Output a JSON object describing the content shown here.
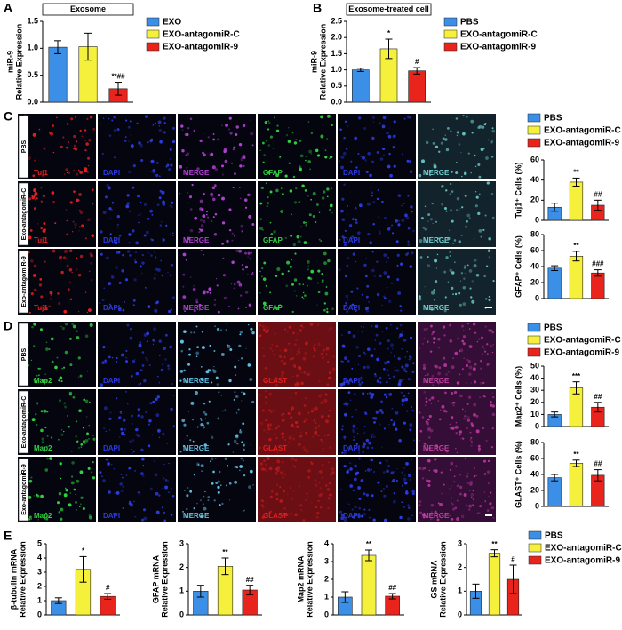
{
  "panels": [
    "A",
    "B",
    "C",
    "D",
    "E"
  ],
  "micrographs": [
    {
      "rows": [
        "PBS",
        "Exo-antagomiR-C",
        "Exo-antagomiR-9"
      ],
      "columns": [
        "Tuj1",
        "DAPI",
        "MERGE",
        "GFAP",
        "DAPI",
        "MERGE"
      ]
    },
    {
      "rows": [
        "PBS",
        "Exo-antagomiR-C",
        "Exo-antagomiR-9"
      ],
      "columns": [
        "Map2",
        "DAPI",
        "MERGE",
        "GLAST",
        "DAPI",
        "MERGE"
      ]
    }
  ],
  "chart_data": [
    {
      "type": "bar",
      "title": "Exosome",
      "ylabel": [
        "miR-9",
        "Relative Expression"
      ],
      "ylim": [
        0,
        1.5
      ],
      "yticks": [
        {
          "value": 0,
          "label": "0.0"
        },
        0.5,
        {
          "value": 1,
          "label": "1.0"
        },
        1.5
      ],
      "series": [
        {
          "name": "EXO",
          "color": "#3b8fe6",
          "values": [
            1.02
          ],
          "errors": [
            0.12
          ]
        },
        {
          "name": "EXO-antagomiR-C",
          "color": "#f5f03c",
          "values": [
            1.03
          ],
          "errors": [
            0.25
          ]
        },
        {
          "name": "EXO-antagomiR-9",
          "color": "#e8241c",
          "values": [
            0.25
          ],
          "errors": [
            0.12
          ],
          "significance": [
            "**##"
          ]
        }
      ]
    },
    {
      "type": "bar",
      "title": "Exosome-treated cell",
      "ylabel": [
        "miR-9",
        "Relative Expression"
      ],
      "ylim": [
        0,
        2.5
      ],
      "yticks": [
        {
          "value": 0,
          "label": "0.0"
        },
        0.5,
        {
          "value": 1,
          "label": "1.0"
        },
        1.5,
        {
          "value": 2,
          "label": "2.0"
        },
        2.5
      ],
      "series": [
        {
          "name": "PBS",
          "color": "#3b8fe6",
          "values": [
            1.0
          ],
          "errors": [
            0.05
          ]
        },
        {
          "name": "EXO-antagomiR-C",
          "color": "#f5f03c",
          "values": [
            1.65
          ],
          "errors": [
            0.3
          ],
          "significance": [
            "*"
          ]
        },
        {
          "name": "EXO-antagomiR-9",
          "color": "#e8241c",
          "values": [
            0.97
          ],
          "errors": [
            0.1
          ],
          "significance": [
            "#"
          ]
        }
      ]
    },
    {
      "type": "bar",
      "ylabel": [
        "Tuj1⁺ Cells  (%)"
      ],
      "ylim": [
        0,
        60
      ],
      "yticks": [
        0,
        20,
        40,
        60
      ],
      "series": [
        {
          "name": "PBS",
          "color": "#3b8fe6",
          "values": [
            13
          ],
          "errors": [
            4
          ]
        },
        {
          "name": "EXO-antagomiR-C",
          "color": "#f5f03c",
          "values": [
            38
          ],
          "errors": [
            4
          ],
          "significance": [
            "**"
          ]
        },
        {
          "name": "EXO-antagomiR-9",
          "color": "#e8241c",
          "values": [
            15
          ],
          "errors": [
            5
          ],
          "significance": [
            "##"
          ]
        }
      ]
    },
    {
      "type": "bar",
      "ylabel": [
        "GFAP⁺ Cells  (%)"
      ],
      "ylim": [
        0,
        80
      ],
      "yticks": [
        0,
        20,
        40,
        60,
        80
      ],
      "series": [
        {
          "color": "#3b8fe6",
          "values": [
            38
          ],
          "errors": [
            3
          ]
        },
        {
          "color": "#f5f03c",
          "values": [
            53
          ],
          "errors": [
            6
          ],
          "significance": [
            "**"
          ]
        },
        {
          "color": "#e8241c",
          "values": [
            32
          ],
          "errors": [
            4
          ],
          "significance": [
            "###"
          ]
        }
      ]
    },
    {
      "type": "bar",
      "ylabel": [
        "Map2⁺ Cells  (%)"
      ],
      "ylim": [
        0,
        50
      ],
      "yticks": [
        0,
        10,
        20,
        30,
        40,
        50
      ],
      "series": [
        {
          "name": "PBS",
          "color": "#3b8fe6",
          "values": [
            10
          ],
          "errors": [
            2
          ]
        },
        {
          "name": "EXO-antagomiR-C",
          "color": "#f5f03c",
          "values": [
            32
          ],
          "errors": [
            5
          ],
          "significance": [
            "***"
          ]
        },
        {
          "name": "EXO-antagomiR-9",
          "color": "#e8241c",
          "values": [
            16
          ],
          "errors": [
            4
          ],
          "significance": [
            "##"
          ]
        }
      ]
    },
    {
      "type": "bar",
      "ylabel": [
        "GLAST⁺ Cells  (%)"
      ],
      "ylim": [
        0,
        80
      ],
      "yticks": [
        0,
        20,
        40,
        60,
        80
      ],
      "series": [
        {
          "color": "#3b8fe6",
          "values": [
            36
          ],
          "errors": [
            4
          ]
        },
        {
          "color": "#f5f03c",
          "values": [
            54
          ],
          "errors": [
            4
          ],
          "significance": [
            "**"
          ]
        },
        {
          "color": "#e8241c",
          "values": [
            39
          ],
          "errors": [
            7
          ],
          "significance": [
            "##"
          ]
        }
      ]
    },
    {
      "type": "bar",
      "ylabel": [
        "β-tubulin mRNA",
        "Relative Expression"
      ],
      "ylim": [
        0,
        5
      ],
      "yticks": [
        0,
        1,
        2,
        3,
        4,
        5
      ],
      "series": [
        {
          "name": "PBS",
          "color": "#3b8fe6",
          "values": [
            1.0
          ],
          "errors": [
            0.2
          ]
        },
        {
          "name": "EXO-antagomiR-C",
          "color": "#f5f03c",
          "values": [
            3.2
          ],
          "errors": [
            0.9
          ],
          "significance": [
            "*"
          ]
        },
        {
          "name": "EXO-antagomiR-9",
          "color": "#e8241c",
          "values": [
            1.3
          ],
          "errors": [
            0.2
          ],
          "significance": [
            "#"
          ]
        }
      ]
    },
    {
      "type": "bar",
      "ylabel": [
        "GFAP mRNA",
        "Relative Expression"
      ],
      "ylim": [
        0,
        3
      ],
      "yticks": [
        0,
        1,
        2,
        3
      ],
      "series": [
        {
          "color": "#3b8fe6",
          "values": [
            1.0
          ],
          "errors": [
            0.25
          ]
        },
        {
          "color": "#f5f03c",
          "values": [
            2.05
          ],
          "errors": [
            0.35
          ],
          "significance": [
            "**"
          ]
        },
        {
          "color": "#e8241c",
          "values": [
            1.05
          ],
          "errors": [
            0.2
          ],
          "significance": [
            "##"
          ]
        }
      ]
    },
    {
      "type": "bar",
      "ylabel": [
        "Map2 mRNA",
        "Relative Expression"
      ],
      "ylim": [
        0,
        4
      ],
      "yticks": [
        0,
        1,
        2,
        3,
        4
      ],
      "series": [
        {
          "color": "#3b8fe6",
          "values": [
            1.0
          ],
          "errors": [
            0.3
          ]
        },
        {
          "color": "#f5f03c",
          "values": [
            3.35
          ],
          "errors": [
            0.3
          ],
          "significance": [
            "**"
          ]
        },
        {
          "color": "#e8241c",
          "values": [
            1.05
          ],
          "errors": [
            0.15
          ],
          "significance": [
            "##"
          ]
        }
      ]
    },
    {
      "type": "bar",
      "ylabel": [
        "GS mRNA",
        "Relative Expression"
      ],
      "ylim": [
        0,
        3
      ],
      "yticks": [
        0,
        1,
        2,
        3
      ],
      "series": [
        {
          "color": "#3b8fe6",
          "values": [
            1.0
          ],
          "errors": [
            0.3
          ]
        },
        {
          "color": "#f5f03c",
          "values": [
            2.6
          ],
          "errors": [
            0.15
          ],
          "significance": [
            "**"
          ]
        },
        {
          "color": "#e8241c",
          "values": [
            1.5
          ],
          "errors": [
            0.6
          ],
          "significance": [
            "#"
          ]
        }
      ]
    }
  ]
}
